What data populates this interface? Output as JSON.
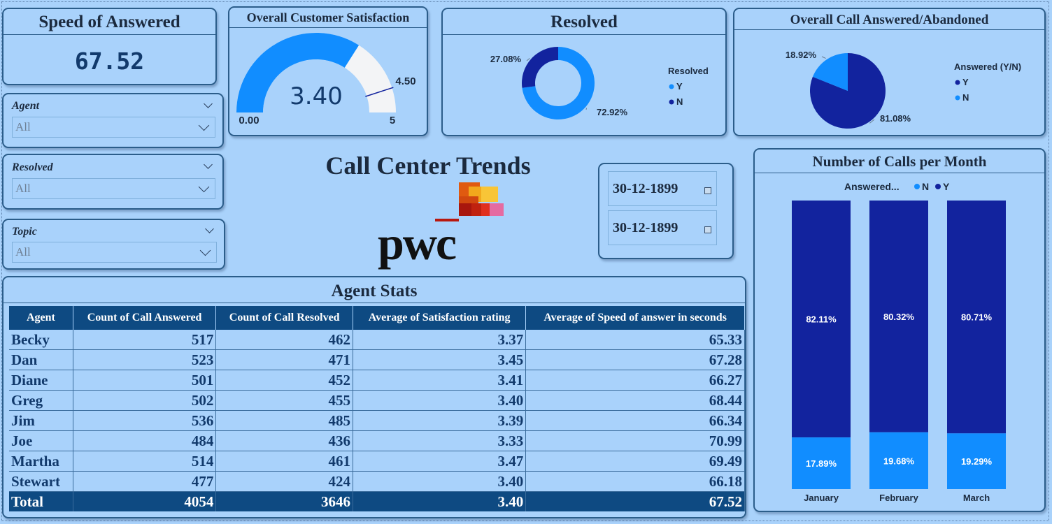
{
  "speed_card": {
    "title": "Speed of Answered",
    "value": "67.52"
  },
  "satisfaction_card": {
    "title": "Overall Customer Satisfaction",
    "value": "3.40",
    "min_label": "0.00",
    "max_label": "5",
    "target_label": "4.50",
    "gauge": {
      "value": 3.4,
      "min": 0,
      "max": 5,
      "target": 4.5
    }
  },
  "slicers": [
    {
      "label": "Agent",
      "value": "All"
    },
    {
      "label": "Resolved",
      "value": "All"
    },
    {
      "label": "Topic",
      "value": "All"
    }
  ],
  "main_title": "Call Center Trends",
  "logo_text": "pwc",
  "dates": {
    "start": "30-12-1899",
    "end": "30-12-1899"
  },
  "colors": {
    "dark": "#12239e",
    "light": "#118dff",
    "gauge_bg": "#f3f4f6",
    "header": "#0e4a82"
  },
  "chart_data": [
    {
      "type": "pie",
      "title": "Resolved",
      "donut": true,
      "legend_title": "Resolved",
      "slices": [
        {
          "label": "Y",
          "value": 72.92,
          "label_text": "72.92%"
        },
        {
          "label": "N",
          "value": 27.08,
          "label_text": "27.08%"
        }
      ]
    },
    {
      "type": "pie",
      "title": "Overall Call Answered/Abandoned",
      "donut": false,
      "legend_title": "Answered (Y/N)",
      "slices": [
        {
          "label": "Y",
          "value": 81.08,
          "label_text": "81.08%"
        },
        {
          "label": "N",
          "value": 18.92,
          "label_text": "18.92%"
        }
      ]
    },
    {
      "type": "bar",
      "stacked": true,
      "title": "Number of Calls per Month",
      "legend_title": "Answered...",
      "legend": [
        "N",
        "Y"
      ],
      "categories": [
        "January",
        "February",
        "March"
      ],
      "series": [
        {
          "name": "Y",
          "values": [
            82.11,
            80.32,
            80.71
          ],
          "labels": [
            "82.11%",
            "80.32%",
            "80.71%"
          ]
        },
        {
          "name": "N",
          "values": [
            17.89,
            19.68,
            19.29
          ],
          "labels": [
            "17.89%",
            "19.68%",
            "19.29%"
          ]
        }
      ]
    },
    {
      "type": "table",
      "title": "Agent Stats",
      "columns": [
        "Agent",
        "Count of Call Answered",
        "Count of Call Resolved",
        "Average of Satisfaction rating",
        "Average of Speed of answer in seconds"
      ],
      "rows": [
        [
          "Becky",
          "517",
          "462",
          "3.37",
          "65.33"
        ],
        [
          "Dan",
          "523",
          "471",
          "3.45",
          "67.28"
        ],
        [
          "Diane",
          "501",
          "452",
          "3.41",
          "66.27"
        ],
        [
          "Greg",
          "502",
          "455",
          "3.40",
          "68.44"
        ],
        [
          "Jim",
          "536",
          "485",
          "3.39",
          "66.34"
        ],
        [
          "Joe",
          "484",
          "436",
          "3.33",
          "70.99"
        ],
        [
          "Martha",
          "514",
          "461",
          "3.47",
          "69.49"
        ],
        [
          "Stewart",
          "477",
          "424",
          "3.40",
          "66.18"
        ]
      ],
      "total": [
        "Total",
        "4054",
        "3646",
        "3.40",
        "67.52"
      ]
    }
  ]
}
